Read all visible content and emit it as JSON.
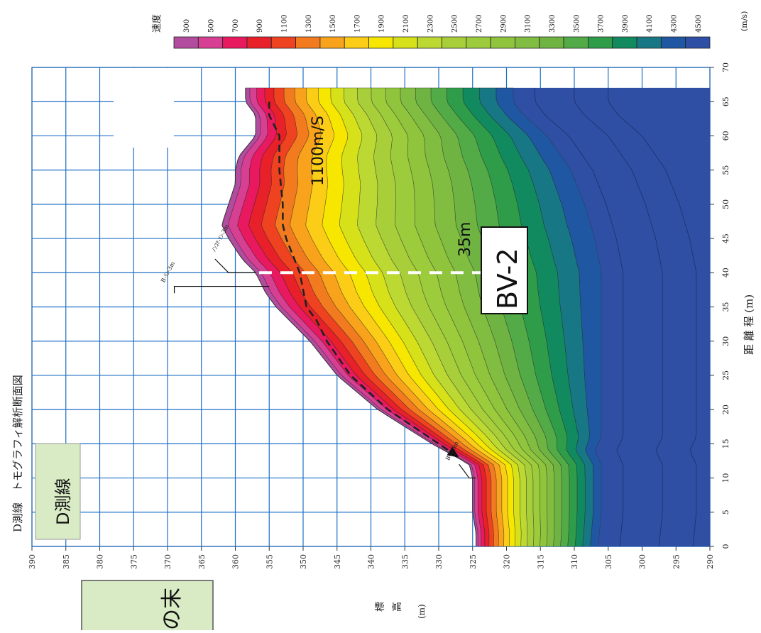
{
  "labels": {
    "figure_title": "D測線　トモグラフィ解析断面図",
    "survey_line_box": "D測線",
    "cropped_box_text": "の末",
    "velocity_legend_title": "速度",
    "velocity_unit": "(m/s)",
    "xlabel": "距 離 程 (m)",
    "ylabel_chars": [
      "標",
      "高",
      "(m)"
    ],
    "annotation_1100": "1100m/S",
    "annotation_35m": "35m",
    "annotation_bv2": "BV-2",
    "borehole_labels": [
      "B-ﾘﾝ-3m",
      "ﾉﾝｺｱ-ﾘﾝ-3m",
      "B-1-3m"
    ]
  },
  "colors": {
    "grid": "#1f6fc4",
    "dashed_1100": "#222222",
    "bv2_line": "#ffffff",
    "box_fill": "#d9ebc5",
    "deep_layer": "#2e4fa3"
  },
  "chart_data": {
    "type": "heatmap",
    "title": "D測線　トモグラフィ解析断面図",
    "xlabel": "距 離 程 (m)",
    "ylabel": "標 高 (m)",
    "xlim": [
      0,
      70
    ],
    "ylim": [
      290,
      390
    ],
    "x_ticks": [
      0,
      5,
      10,
      15,
      20,
      25,
      30,
      35,
      40,
      45,
      50,
      55,
      60,
      65,
      70
    ],
    "y_ticks": [
      290,
      295,
      300,
      305,
      310,
      315,
      320,
      325,
      330,
      335,
      340,
      345,
      350,
      355,
      360,
      365,
      370,
      375,
      380,
      385,
      390
    ],
    "grid": true,
    "velocity_scale": {
      "unit": "m/s",
      "levels": [
        300,
        500,
        700,
        900,
        1100,
        1300,
        1500,
        1700,
        1900,
        2100,
        2300,
        2500,
        2700,
        2900,
        3100,
        3300,
        3500,
        3700,
        3900,
        4100,
        4300,
        4500
      ],
      "colors": [
        "#b24c9e",
        "#d63f92",
        "#e8195f",
        "#e8202a",
        "#ef4221",
        "#f37b1f",
        "#f8a31b",
        "#fccd16",
        "#f6e600",
        "#d6e11a",
        "#bcd833",
        "#a8cf3a",
        "#9ccb3c",
        "#90c43d",
        "#80bd40",
        "#6fb443",
        "#53ab47",
        "#2f9c4a",
        "#128a5f",
        "#187784",
        "#1f57a3",
        "#2e4fa3"
      ]
    },
    "ground_surface": {
      "x": [
        0,
        2,
        5,
        8,
        10,
        12,
        15,
        20,
        25,
        30,
        33,
        35,
        37,
        40,
        42,
        45,
        47,
        50,
        53,
        55,
        57,
        60,
        63,
        65,
        67
      ],
      "y": [
        324.5,
        324.5,
        325,
        325,
        325,
        325.5,
        331,
        339,
        345,
        349,
        352,
        354,
        355.5,
        357,
        359,
        361,
        362,
        361,
        360,
        360,
        359.5,
        357,
        357,
        358.5,
        358.5
      ]
    },
    "high_velocity_top": {
      "velocity": 4500,
      "x": [
        0,
        5,
        10,
        12,
        14,
        16,
        20,
        25,
        30,
        35,
        40,
        45,
        50,
        55,
        60,
        63,
        65,
        67
      ],
      "y": [
        306.5,
        306,
        306,
        306,
        307,
        306,
        306,
        306,
        306,
        306,
        306,
        307,
        308.5,
        310.5,
        314,
        317.5,
        319,
        319
      ]
    },
    "isovelocity_1100": {
      "velocity": 1100,
      "x": [
        13,
        15,
        20,
        25,
        30,
        33,
        35,
        40,
        45,
        47,
        50,
        55,
        60,
        63,
        65
      ],
      "y": [
        327,
        330,
        337.5,
        343,
        346.5,
        348,
        349.5,
        350.5,
        352.5,
        353,
        353,
        353.5,
        353.5,
        355,
        355
      ]
    },
    "annotations": [
      {
        "text": "1100m/S",
        "x": 52,
        "y": 350.5
      },
      {
        "text": "35m",
        "x": 42,
        "y": 333.5
      },
      {
        "text": "BV-2",
        "x": 38,
        "y": 325
      },
      {
        "text": "BV-2 line",
        "x": 40,
        "y_top": 356.5,
        "y_bottom": 321
      }
    ],
    "boreholes": [
      {
        "label": "B-ﾘﾝ-3m",
        "x": 38
      },
      {
        "label": "ﾉﾝｺｱ-ﾘﾝ-3m",
        "x": 40
      },
      {
        "label": "B-1-3m",
        "x": 10
      }
    ]
  }
}
